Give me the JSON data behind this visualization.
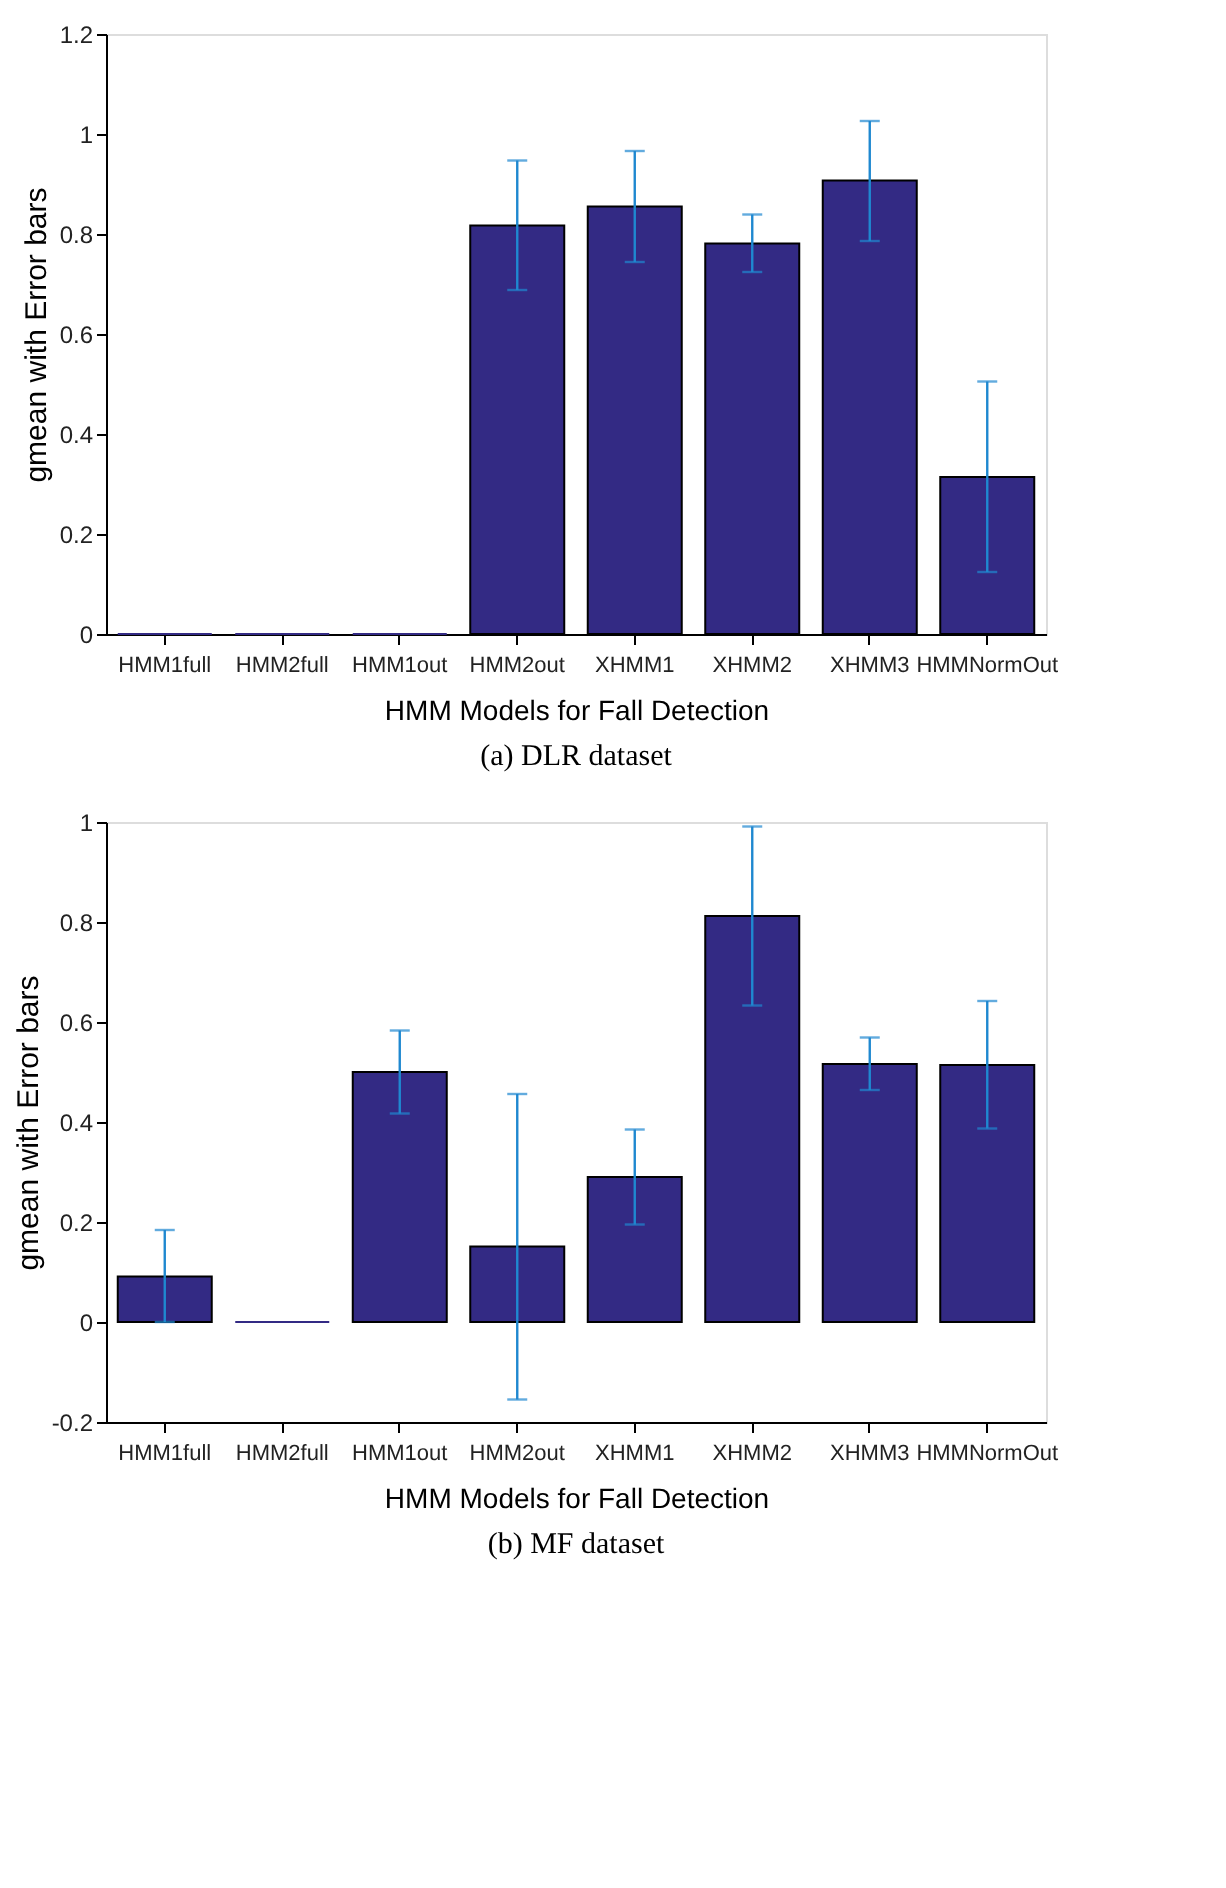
{
  "chart_data": [
    {
      "type": "bar",
      "categories": [
        "HMM1full",
        "HMM2full",
        "HMM1out",
        "HMM2out",
        "XHMM1",
        "XHMM2",
        "XHMM3",
        "HMMNormOut"
      ],
      "xlabel": "HMM Models for Fall Detection",
      "ylabel": "gmean with Error bars",
      "annotations": [
        "(a) DLR dataset"
      ],
      "series": [
        {
          "color": "#332a84",
          "values": [
            0,
            0,
            0,
            0.817,
            0.855,
            0.781,
            0.907,
            0.314
          ],
          "errors": [
            null,
            null,
            null,
            [
              0.688,
              0.947
            ],
            [
              0.744,
              0.966
            ],
            [
              0.724,
              0.839
            ],
            [
              0.786,
              1.026
            ],
            [
              0.124,
              0.505
            ]
          ]
        }
      ],
      "ylim": [
        0,
        1.2
      ],
      "yticks": [
        0,
        0.2,
        0.4,
        0.6,
        0.8,
        1,
        1.2
      ],
      "grid": false
    },
    {
      "type": "bar",
      "categories": [
        "HMM1full",
        "HMM2full",
        "HMM1out",
        "HMM2out",
        "XHMM1",
        "XHMM2",
        "XHMM3",
        "HMMNormOut"
      ],
      "xlabel": "HMM Models for Fall Detection",
      "ylabel": "gmean with Error bars",
      "annotations": [
        "(b) MF dataset"
      ],
      "series": [
        {
          "color": "#332a84",
          "values": [
            0.091,
            0,
            0.5,
            0.151,
            0.29,
            0.812,
            0.516,
            0.514
          ],
          "errors": [
            [
              0,
              0.184
            ],
            null,
            [
              0.417,
              0.583
            ],
            [
              -0.155,
              0.456
            ],
            [
              0.195,
              0.385
            ],
            [
              0.633,
              0.991
            ],
            [
              0.464,
              0.569
            ],
            [
              0.387,
              0.642
            ]
          ]
        }
      ],
      "ylim": [
        -0.2,
        1
      ],
      "yticks": [
        -0.2,
        0,
        0.2,
        0.4,
        0.6,
        0.8,
        1
      ],
      "grid": false
    }
  ]
}
